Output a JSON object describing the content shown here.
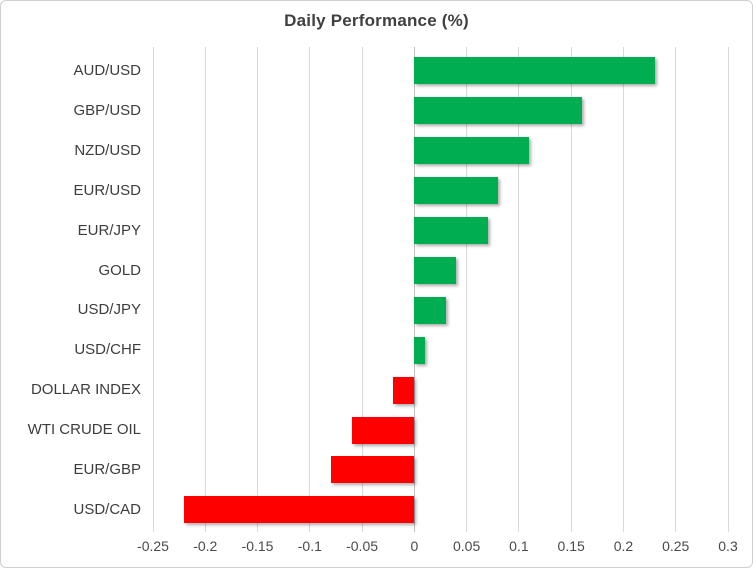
{
  "chart": {
    "title": "Daily Performance (%)",
    "colors": {
      "positive": "#00ad50",
      "negative": "#ff0000",
      "gridline": "#d9d9d9",
      "title_text": "#404040",
      "border": "#cfcfcf"
    }
  },
  "chart_data": {
    "type": "bar",
    "orientation": "horizontal",
    "title": "Daily Performance (%)",
    "categories": [
      "AUD/USD",
      "GBP/USD",
      "NZD/USD",
      "EUR/USD",
      "EUR/JPY",
      "GOLD",
      "USD/JPY",
      "USD/CHF",
      "DOLLAR INDEX",
      "WTI CRUDE OIL",
      "EUR/GBP",
      "USD/CAD"
    ],
    "values": [
      0.23,
      0.16,
      0.11,
      0.08,
      0.07,
      0.04,
      0.03,
      0.01,
      -0.02,
      -0.06,
      -0.08,
      -0.22
    ],
    "xlabel": "",
    "ylabel": "",
    "xlim": [
      -0.25,
      0.3
    ],
    "xticks": [
      -0.25,
      -0.2,
      -0.15,
      -0.1,
      -0.05,
      0,
      0.05,
      0.1,
      0.15,
      0.2,
      0.25,
      0.3
    ],
    "xtick_labels": [
      "-0.25",
      "-0.2",
      "-0.15",
      "-0.1",
      "-0.05",
      "0",
      "0.05",
      "0.1",
      "0.15",
      "0.2",
      "0.25",
      "0.3"
    ],
    "grid": true,
    "legend": false
  }
}
